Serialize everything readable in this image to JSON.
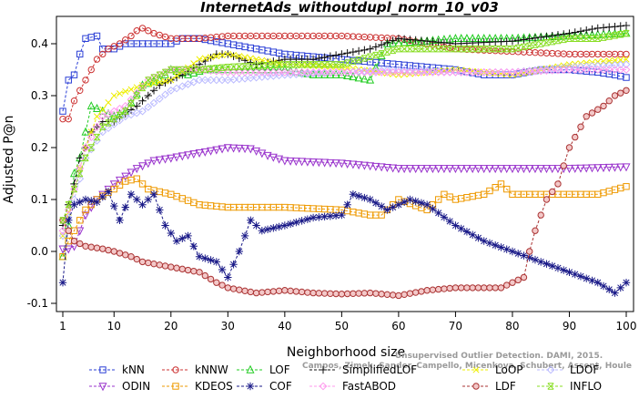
{
  "chart_data": {
    "type": "line",
    "title": "InternetAds_withoutdupl_norm_10_v03",
    "xlabel": "Neighborhood size",
    "ylabel": "Adjusted P@n",
    "xlim": [
      1,
      100
    ],
    "ylim": [
      -0.1,
      0.44
    ],
    "xticks": [
      1,
      10,
      20,
      30,
      40,
      50,
      60,
      70,
      80,
      90,
      100
    ],
    "yticks": [
      -0.1,
      0.0,
      0.1,
      0.2,
      0.3,
      0.4
    ],
    "ytick_labels": [
      "-0.1",
      "0.0",
      "0.1",
      "0.2",
      "0.3",
      "0.4"
    ],
    "grid": false,
    "legend_position": "bottom",
    "watermark": "Campos, Zimek, Sander, Campello, Micenkova, Schubert, Assent, Houle",
    "watermark_line1": "Unsupervised Outlier Detection. DAMI, 2015.",
    "series": [
      {
        "name": "kNN",
        "color": "#2b3fd6",
        "marker": "square",
        "dash": true,
        "knots": [
          [
            1,
            0.27
          ],
          [
            2,
            0.33
          ],
          [
            3,
            0.34
          ],
          [
            4,
            0.38
          ],
          [
            5,
            0.41
          ],
          [
            7,
            0.415
          ],
          [
            8,
            0.39
          ],
          [
            10,
            0.39
          ],
          [
            12,
            0.4
          ],
          [
            15,
            0.4
          ],
          [
            20,
            0.4
          ],
          [
            22,
            0.41
          ],
          [
            25,
            0.41
          ],
          [
            30,
            0.4
          ],
          [
            35,
            0.39
          ],
          [
            40,
            0.38
          ],
          [
            50,
            0.37
          ],
          [
            60,
            0.36
          ],
          [
            70,
            0.35
          ],
          [
            75,
            0.34
          ],
          [
            80,
            0.34
          ],
          [
            85,
            0.35
          ],
          [
            90,
            0.35
          ],
          [
            95,
            0.345
          ],
          [
            98,
            0.34
          ],
          [
            100,
            0.335
          ]
        ]
      },
      {
        "name": "kNNW",
        "color": "#cc3333",
        "marker": "circle",
        "dash": true,
        "knots": [
          [
            1,
            0.255
          ],
          [
            2,
            0.255
          ],
          [
            3,
            0.29
          ],
          [
            4,
            0.31
          ],
          [
            5,
            0.33
          ],
          [
            7,
            0.37
          ],
          [
            9,
            0.39
          ],
          [
            11,
            0.4
          ],
          [
            13,
            0.415
          ],
          [
            14,
            0.425
          ],
          [
            15,
            0.43
          ],
          [
            17,
            0.42
          ],
          [
            20,
            0.41
          ],
          [
            25,
            0.41
          ],
          [
            30,
            0.415
          ],
          [
            40,
            0.415
          ],
          [
            50,
            0.415
          ],
          [
            60,
            0.41
          ],
          [
            70,
            0.39
          ],
          [
            80,
            0.385
          ],
          [
            90,
            0.38
          ],
          [
            100,
            0.38
          ]
        ]
      },
      {
        "name": "LOF",
        "color": "#22cc22",
        "marker": "triangle",
        "dash": true,
        "knots": [
          [
            1,
            -0.01
          ],
          [
            2,
            0.05
          ],
          [
            3,
            0.15
          ],
          [
            4,
            0.18
          ],
          [
            5,
            0.23
          ],
          [
            6,
            0.28
          ],
          [
            8,
            0.27
          ],
          [
            10,
            0.26
          ],
          [
            12,
            0.27
          ],
          [
            15,
            0.32
          ],
          [
            18,
            0.33
          ],
          [
            20,
            0.35
          ],
          [
            23,
            0.34
          ],
          [
            26,
            0.35
          ],
          [
            30,
            0.35
          ],
          [
            35,
            0.35
          ],
          [
            40,
            0.35
          ],
          [
            45,
            0.34
          ],
          [
            50,
            0.34
          ],
          [
            55,
            0.33
          ],
          [
            58,
            0.4
          ],
          [
            65,
            0.405
          ],
          [
            70,
            0.41
          ],
          [
            80,
            0.41
          ],
          [
            90,
            0.415
          ],
          [
            100,
            0.42
          ]
        ]
      },
      {
        "name": "SimplifiedLOF",
        "color": "#111111",
        "marker": "plus",
        "dash": true,
        "knots": [
          [
            1,
            0.05
          ],
          [
            2,
            0.09
          ],
          [
            3,
            0.13
          ],
          [
            4,
            0.18
          ],
          [
            5,
            0.2
          ],
          [
            6,
            0.23
          ],
          [
            8,
            0.25
          ],
          [
            10,
            0.25
          ],
          [
            14,
            0.28
          ],
          [
            18,
            0.32
          ],
          [
            22,
            0.34
          ],
          [
            25,
            0.36
          ],
          [
            28,
            0.38
          ],
          [
            30,
            0.38
          ],
          [
            35,
            0.36
          ],
          [
            40,
            0.37
          ],
          [
            45,
            0.37
          ],
          [
            50,
            0.38
          ],
          [
            55,
            0.39
          ],
          [
            60,
            0.41
          ],
          [
            70,
            0.4
          ],
          [
            80,
            0.405
          ],
          [
            90,
            0.42
          ],
          [
            95,
            0.43
          ],
          [
            100,
            0.435
          ]
        ]
      },
      {
        "name": "LoOP",
        "color": "#eeee00",
        "marker": "x",
        "dash": true,
        "knots": [
          [
            1,
            0.03
          ],
          [
            3,
            0.12
          ],
          [
            5,
            0.2
          ],
          [
            7,
            0.26
          ],
          [
            10,
            0.3
          ],
          [
            15,
            0.32
          ],
          [
            20,
            0.33
          ],
          [
            25,
            0.37
          ],
          [
            30,
            0.38
          ],
          [
            40,
            0.36
          ],
          [
            50,
            0.355
          ],
          [
            60,
            0.34
          ],
          [
            70,
            0.35
          ],
          [
            80,
            0.34
          ],
          [
            90,
            0.36
          ],
          [
            100,
            0.37
          ]
        ]
      },
      {
        "name": "LDOF",
        "color": "#bbbbff",
        "marker": "diamond",
        "dash": true,
        "knots": [
          [
            1,
            0.03
          ],
          [
            3,
            0.1
          ],
          [
            5,
            0.18
          ],
          [
            8,
            0.23
          ],
          [
            12,
            0.26
          ],
          [
            15,
            0.27
          ],
          [
            20,
            0.31
          ],
          [
            25,
            0.33
          ],
          [
            30,
            0.33
          ],
          [
            40,
            0.34
          ],
          [
            50,
            0.345
          ],
          [
            60,
            0.35
          ],
          [
            70,
            0.345
          ],
          [
            80,
            0.345
          ],
          [
            90,
            0.355
          ],
          [
            100,
            0.36
          ]
        ]
      },
      {
        "name": "ODIN",
        "color": "#9933cc",
        "marker": "triangle-down",
        "dash": true,
        "knots": [
          [
            1,
            0.005
          ],
          [
            2,
            0.005
          ],
          [
            3,
            0.01
          ],
          [
            4,
            0.04
          ],
          [
            5,
            0.07
          ],
          [
            7,
            0.1
          ],
          [
            10,
            0.13
          ],
          [
            14,
            0.16
          ],
          [
            17,
            0.175
          ],
          [
            20,
            0.18
          ],
          [
            25,
            0.19
          ],
          [
            30,
            0.2
          ],
          [
            34,
            0.198
          ],
          [
            37,
            0.185
          ],
          [
            40,
            0.175
          ],
          [
            50,
            0.17
          ],
          [
            60,
            0.16
          ],
          [
            70,
            0.16
          ],
          [
            80,
            0.16
          ],
          [
            90,
            0.16
          ],
          [
            100,
            0.163
          ]
        ]
      },
      {
        "name": "KDEOS",
        "color": "#ee9900",
        "marker": "square",
        "dash": true,
        "knots": [
          [
            1,
            -0.01
          ],
          [
            2,
            0.02
          ],
          [
            3,
            0.04
          ],
          [
            4,
            0.06
          ],
          [
            5,
            0.08
          ],
          [
            7,
            0.1
          ],
          [
            10,
            0.12
          ],
          [
            12,
            0.135
          ],
          [
            14,
            0.14
          ],
          [
            16,
            0.12
          ],
          [
            20,
            0.11
          ],
          [
            25,
            0.09
          ],
          [
            30,
            0.085
          ],
          [
            40,
            0.085
          ],
          [
            50,
            0.08
          ],
          [
            55,
            0.07
          ],
          [
            57,
            0.07
          ],
          [
            60,
            0.1
          ],
          [
            65,
            0.08
          ],
          [
            68,
            0.11
          ],
          [
            70,
            0.1
          ],
          [
            75,
            0.11
          ],
          [
            78,
            0.13
          ],
          [
            80,
            0.11
          ],
          [
            90,
            0.11
          ],
          [
            95,
            0.11
          ],
          [
            100,
            0.125
          ]
        ]
      },
      {
        "name": "COF",
        "color": "#1a1a88",
        "marker": "star",
        "dash": true,
        "knots": [
          [
            1,
            -0.06
          ],
          [
            2,
            0.06
          ],
          [
            3,
            0.09
          ],
          [
            5,
            0.1
          ],
          [
            7,
            0.095
          ],
          [
            9,
            0.115
          ],
          [
            11,
            0.06
          ],
          [
            13,
            0.11
          ],
          [
            15,
            0.09
          ],
          [
            17,
            0.11
          ],
          [
            19,
            0.05
          ],
          [
            21,
            0.02
          ],
          [
            23,
            0.03
          ],
          [
            25,
            -0.01
          ],
          [
            28,
            -0.02
          ],
          [
            30,
            -0.05
          ],
          [
            32,
            0.0
          ],
          [
            34,
            0.06
          ],
          [
            36,
            0.04
          ],
          [
            40,
            0.05
          ],
          [
            45,
            0.065
          ],
          [
            50,
            0.07
          ],
          [
            52,
            0.11
          ],
          [
            55,
            0.1
          ],
          [
            58,
            0.08
          ],
          [
            62,
            0.1
          ],
          [
            65,
            0.09
          ],
          [
            70,
            0.05
          ],
          [
            75,
            0.02
          ],
          [
            80,
            0.0
          ],
          [
            85,
            -0.02
          ],
          [
            90,
            -0.04
          ],
          [
            95,
            -0.06
          ],
          [
            98,
            -0.08
          ],
          [
            100,
            -0.06
          ]
        ]
      },
      {
        "name": "FastABOD",
        "color": "#ff99ee",
        "marker": "diamond",
        "dash": true,
        "knots": [
          [
            1,
            0.04
          ],
          [
            3,
            0.12
          ],
          [
            5,
            0.2
          ],
          [
            8,
            0.26
          ],
          [
            12,
            0.28
          ],
          [
            16,
            0.33
          ],
          [
            20,
            0.35
          ],
          [
            25,
            0.35
          ],
          [
            30,
            0.345
          ],
          [
            40,
            0.345
          ],
          [
            50,
            0.345
          ],
          [
            60,
            0.345
          ],
          [
            70,
            0.345
          ],
          [
            80,
            0.345
          ],
          [
            90,
            0.35
          ],
          [
            100,
            0.35
          ]
        ]
      },
      {
        "name": "LDF",
        "color": "#aa3333",
        "marker": "circle-dot",
        "dash": true,
        "knots": [
          [
            1,
            0.06
          ],
          [
            2,
            0.04
          ],
          [
            3,
            0.02
          ],
          [
            5,
            0.01
          ],
          [
            8,
            0.005
          ],
          [
            10,
            0.0
          ],
          [
            13,
            -0.01
          ],
          [
            15,
            -0.02
          ],
          [
            20,
            -0.03
          ],
          [
            25,
            -0.04
          ],
          [
            28,
            -0.06
          ],
          [
            30,
            -0.07
          ],
          [
            35,
            -0.08
          ],
          [
            40,
            -0.075
          ],
          [
            45,
            -0.08
          ],
          [
            50,
            -0.082
          ],
          [
            55,
            -0.08
          ],
          [
            60,
            -0.085
          ],
          [
            65,
            -0.075
          ],
          [
            70,
            -0.07
          ],
          [
            75,
            -0.07
          ],
          [
            78,
            -0.07
          ],
          [
            80,
            -0.06
          ],
          [
            82,
            -0.05
          ],
          [
            83,
            0.0
          ],
          [
            84,
            0.04
          ],
          [
            86,
            0.1
          ],
          [
            88,
            0.13
          ],
          [
            90,
            0.2
          ],
          [
            93,
            0.26
          ],
          [
            96,
            0.28
          ],
          [
            98,
            0.3
          ],
          [
            100,
            0.31
          ]
        ]
      },
      {
        "name": "INFLO",
        "color": "#88dd22",
        "marker": "double-x",
        "dash": true,
        "knots": [
          [
            1,
            0.06
          ],
          [
            3,
            0.12
          ],
          [
            5,
            0.18
          ],
          [
            8,
            0.24
          ],
          [
            12,
            0.27
          ],
          [
            16,
            0.33
          ],
          [
            20,
            0.35
          ],
          [
            25,
            0.35
          ],
          [
            30,
            0.355
          ],
          [
            40,
            0.36
          ],
          [
            50,
            0.36
          ],
          [
            60,
            0.39
          ],
          [
            70,
            0.39
          ],
          [
            80,
            0.39
          ],
          [
            90,
            0.41
          ],
          [
            95,
            0.41
          ],
          [
            100,
            0.42
          ]
        ]
      }
    ]
  }
}
